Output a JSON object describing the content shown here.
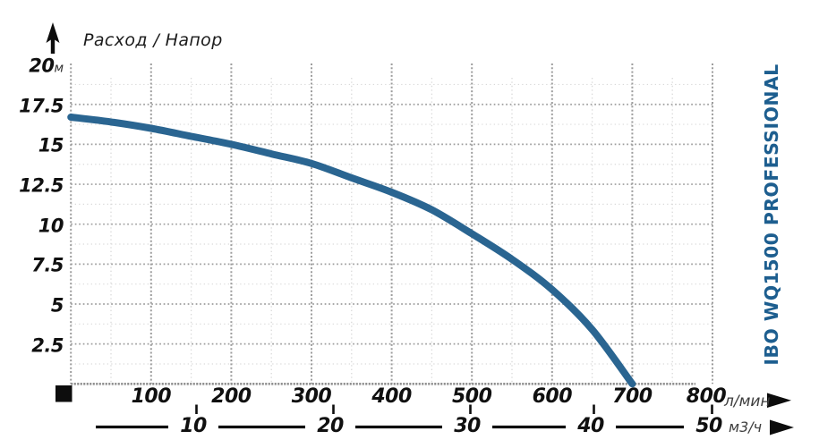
{
  "title": "Расход / Напор",
  "brand": "IBO WQ1500 PROFESSIONAL",
  "colors": {
    "curve": "#2a6591",
    "brand_text": "#1d5e8f",
    "axis_text": "#101010",
    "unit_text": "#3e3e3e",
    "grid_major": "#9d9d9d",
    "grid_minor": "#d9d9d9",
    "baseline": "#8d8d8d",
    "marker_black": "#0d0d0d"
  },
  "y_axis": {
    "unit": "м",
    "ticks": [
      20,
      17.5,
      15,
      12.5,
      10,
      7.5,
      5,
      2.5
    ]
  },
  "x_axis_lmin": {
    "unit": "л/мин",
    "ticks": [
      100,
      200,
      300,
      400,
      500,
      600,
      700,
      800
    ]
  },
  "x_axis_m3h": {
    "unit": "м3/ч",
    "ticks": [
      10,
      20,
      30,
      40,
      50
    ]
  },
  "chart_data": {
    "type": "line",
    "title": "Расход / Напор",
    "x_unit": "л/мин",
    "x2_unit": "м3/ч",
    "y_unit": "м",
    "xlim": [
      0,
      800
    ],
    "ylim": [
      0,
      20
    ],
    "x_ticks_lmin": [
      100,
      200,
      300,
      400,
      500,
      600,
      700,
      800
    ],
    "x_ticks_m3h": [
      10,
      20,
      30,
      40,
      50
    ],
    "y_ticks": [
      20,
      17.5,
      15,
      12.5,
      10,
      7.5,
      5,
      2.5
    ],
    "grid": true,
    "legend": "none",
    "series": [
      {
        "name": "IBO WQ1500 PROFESSIONAL",
        "x": [
          0,
          50,
          100,
          150,
          200,
          250,
          300,
          350,
          400,
          450,
          500,
          550,
          600,
          650,
          700
        ],
        "y": [
          16.7,
          16.4,
          16.0,
          15.5,
          15.0,
          14.4,
          13.8,
          12.9,
          12.0,
          10.9,
          9.4,
          7.8,
          5.9,
          3.4,
          0
        ]
      }
    ]
  }
}
